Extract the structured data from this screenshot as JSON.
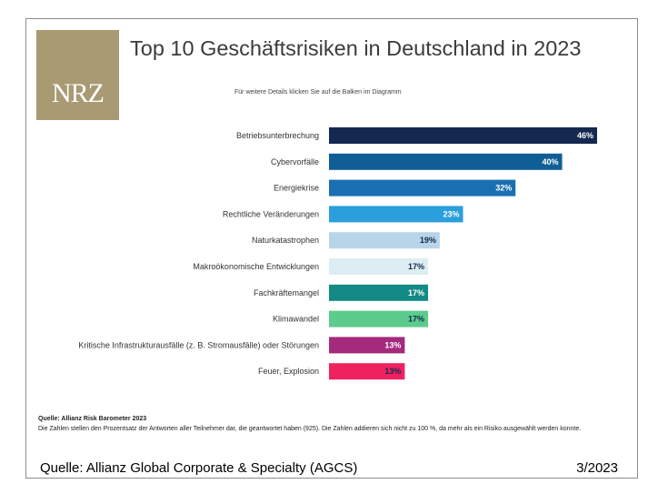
{
  "logo": {
    "text": "NRZ"
  },
  "footer": {
    "source": "Quelle: Allianz Global Corporate & Specialty (AGCS)",
    "date": "3/2023"
  },
  "chart_data": {
    "type": "bar",
    "orientation": "horizontal",
    "title": "Top 10 Geschäftsrisiken in Deutschland in 2023",
    "subtitle": "Für weitere Details klicken Sie auf die Balken im Diagramm",
    "categories": [
      "Betriebsunterbrechung",
      "Cybervorfälle",
      "Energiekrise",
      "Rechtliche Veränderungen",
      "Naturkatastrophen",
      "Makroökonomische Entwicklungen",
      "Fachkräftemangel",
      "Klimawandel",
      "Kritische Infrastrukturausfälle (z. B. Stromausfälle) oder Störungen",
      "Feuer, Explosion"
    ],
    "values": [
      46,
      40,
      32,
      23,
      19,
      17,
      17,
      17,
      13,
      13
    ],
    "labels": [
      "46%",
      "40%",
      "32%",
      "23%",
      "19%",
      "17%",
      "17%",
      "17%",
      "13%",
      "13%"
    ],
    "colors": [
      "#142850",
      "#105e96",
      "#1a6fb3",
      "#2a9fdc",
      "#b7d5e8",
      "#dcedf3",
      "#138a86",
      "#5ccc8d",
      "#a32a7c",
      "#f0215f"
    ],
    "label_colors": [
      "#ffffff",
      "#ffffff",
      "#ffffff",
      "#ffffff",
      "#142850",
      "#142850",
      "#ffffff",
      "#142850",
      "#ffffff",
      "#142850"
    ],
    "xlim": [
      0,
      46
    ],
    "grid": false,
    "source_note": "Quelle: Allianz Risk Barometer 2023",
    "note": "Die Zahlen stellen den Prozentsatz der Antworten aller Teilnehmer dar, die geantwortet haben (925). Die Zahlen addieren sich nicht zu 100 %, da mehr als ein Risiko ausgewählt werden konnte."
  }
}
